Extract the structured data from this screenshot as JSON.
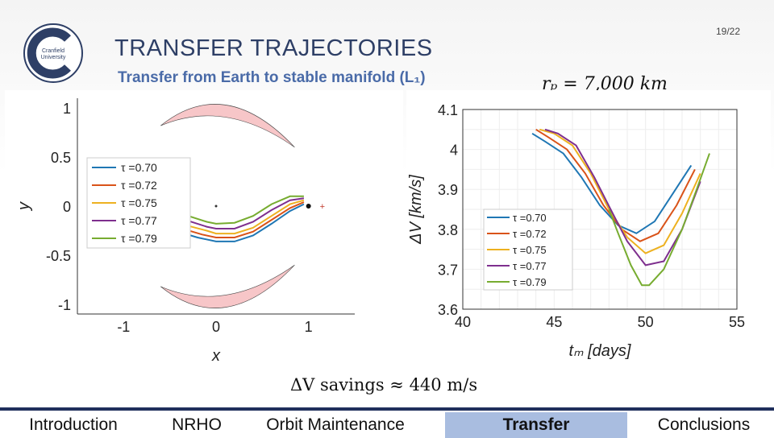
{
  "slide": {
    "page_number": "19/22",
    "title": "TRANSFER TRAJECTORIES",
    "subtitle": "Transfer from Earth to stable manifold (L₁)",
    "rp_label": "rₚ = 7,000 km",
    "savings_label": "ΔV  savings ≈ 440 m/s",
    "logo_text_line1": "Cranfield",
    "logo_text_line2": "University",
    "brand_color": "#2e3f66",
    "accent_color": "#4a6ba8"
  },
  "nav": {
    "items": [
      {
        "label": "Introduction",
        "active": false
      },
      {
        "label": "NRHO",
        "active": false
      },
      {
        "label": "Orbit Maintenance",
        "active": false
      },
      {
        "label": "Transfer",
        "active": true
      },
      {
        "label": "Conclusions",
        "active": false
      }
    ]
  },
  "chart_data": [
    {
      "type": "line",
      "xlabel": "x",
      "ylabel": "y",
      "xlim": [
        -1.5,
        1.5
      ],
      "ylim": [
        -1.1,
        1.1
      ],
      "xticks": [
        "-1",
        "0",
        "1"
      ],
      "yticks": [
        "1",
        "0.5",
        "0",
        "-0.5",
        "-1"
      ],
      "legend_position": "left",
      "series": [
        {
          "name": "τ =0.70",
          "color": "#1f77b4",
          "x": [
            -0.9,
            -0.7,
            -0.45,
            -0.2,
            0,
            0.2,
            0.4,
            0.6,
            0.8,
            0.95
          ],
          "y": [
            0.02,
            -0.12,
            -0.25,
            -0.32,
            -0.36,
            -0.36,
            -0.3,
            -0.18,
            -0.05,
            0.02
          ]
        },
        {
          "name": "τ =0.72",
          "color": "#d95319",
          "x": [
            -0.85,
            -0.65,
            -0.4,
            -0.15,
            0,
            0.2,
            0.4,
            0.6,
            0.8,
            0.95
          ],
          "y": [
            0.04,
            -0.1,
            -0.22,
            -0.29,
            -0.32,
            -0.32,
            -0.26,
            -0.14,
            -0.02,
            0.04
          ]
        },
        {
          "name": "τ =0.75",
          "color": "#edb120",
          "x": [
            -0.8,
            -0.6,
            -0.35,
            -0.1,
            0,
            0.2,
            0.4,
            0.6,
            0.8,
            0.95
          ],
          "y": [
            0.05,
            -0.07,
            -0.19,
            -0.25,
            -0.28,
            -0.28,
            -0.22,
            -0.1,
            0.02,
            0.06
          ]
        },
        {
          "name": "τ =0.77",
          "color": "#7e2f8e",
          "x": [
            -0.75,
            -0.55,
            -0.3,
            -0.1,
            0,
            0.2,
            0.4,
            0.6,
            0.8,
            0.95
          ],
          "y": [
            0.07,
            -0.04,
            -0.15,
            -0.21,
            -0.23,
            -0.23,
            -0.16,
            -0.04,
            0.06,
            0.08
          ]
        },
        {
          "name": "τ =0.79",
          "color": "#77ac30",
          "x": [
            -0.7,
            -0.5,
            -0.3,
            -0.1,
            0,
            0.2,
            0.4,
            0.6,
            0.8,
            0.95
          ],
          "y": [
            0.09,
            0.0,
            -0.1,
            -0.16,
            -0.18,
            -0.17,
            -0.1,
            0.02,
            0.1,
            0.1
          ]
        }
      ]
    },
    {
      "type": "line",
      "xlabel": "tₘ [days]",
      "ylabel": "ΔV [km/s]",
      "xlim": [
        40,
        55
      ],
      "ylim": [
        3.6,
        4.1
      ],
      "xticks": [
        "40",
        "45",
        "50",
        "55"
      ],
      "yticks": [
        "4.1",
        "4",
        "3.9",
        "3.8",
        "3.7",
        "3.6"
      ],
      "grid": true,
      "legend_position": "bottom-left",
      "series": [
        {
          "name": "τ =0.70",
          "color": "#1f77b4",
          "x": [
            43.8,
            44.5,
            45.5,
            46.5,
            47.5,
            48.5,
            49.5,
            50.5,
            51.5,
            52.5
          ],
          "y": [
            4.04,
            4.02,
            3.99,
            3.93,
            3.86,
            3.81,
            3.79,
            3.82,
            3.89,
            3.96
          ]
        },
        {
          "name": "τ =0.72",
          "color": "#d95319",
          "x": [
            44.0,
            44.7,
            45.7,
            46.7,
            47.7,
            48.7,
            49.7,
            50.7,
            51.7,
            52.7
          ],
          "y": [
            4.05,
            4.03,
            4.0,
            3.94,
            3.86,
            3.8,
            3.77,
            3.79,
            3.86,
            3.95
          ]
        },
        {
          "name": "τ =0.75",
          "color": "#edb120",
          "x": [
            44.2,
            45.0,
            46.0,
            47.0,
            48.0,
            49.0,
            50.0,
            51.0,
            52.0,
            53.0
          ],
          "y": [
            4.05,
            4.04,
            4.01,
            3.94,
            3.85,
            3.78,
            3.74,
            3.76,
            3.84,
            3.94
          ]
        },
        {
          "name": "τ =0.77",
          "color": "#7e2f8e",
          "x": [
            44.5,
            45.2,
            46.2,
            47.2,
            48.2,
            49.0,
            50.0,
            51.0,
            52.0,
            53.0
          ],
          "y": [
            4.05,
            4.04,
            4.01,
            3.93,
            3.84,
            3.77,
            3.71,
            3.72,
            3.8,
            3.92
          ]
        },
        {
          "name": "τ =0.79",
          "color": "#77ac30",
          "x": [
            48.0,
            48.5,
            49.2,
            49.8,
            50.2,
            51.0,
            52.0,
            52.8,
            53.5
          ],
          "y": [
            3.85,
            3.79,
            3.71,
            3.66,
            3.66,
            3.7,
            3.8,
            3.9,
            3.99
          ]
        }
      ]
    }
  ]
}
